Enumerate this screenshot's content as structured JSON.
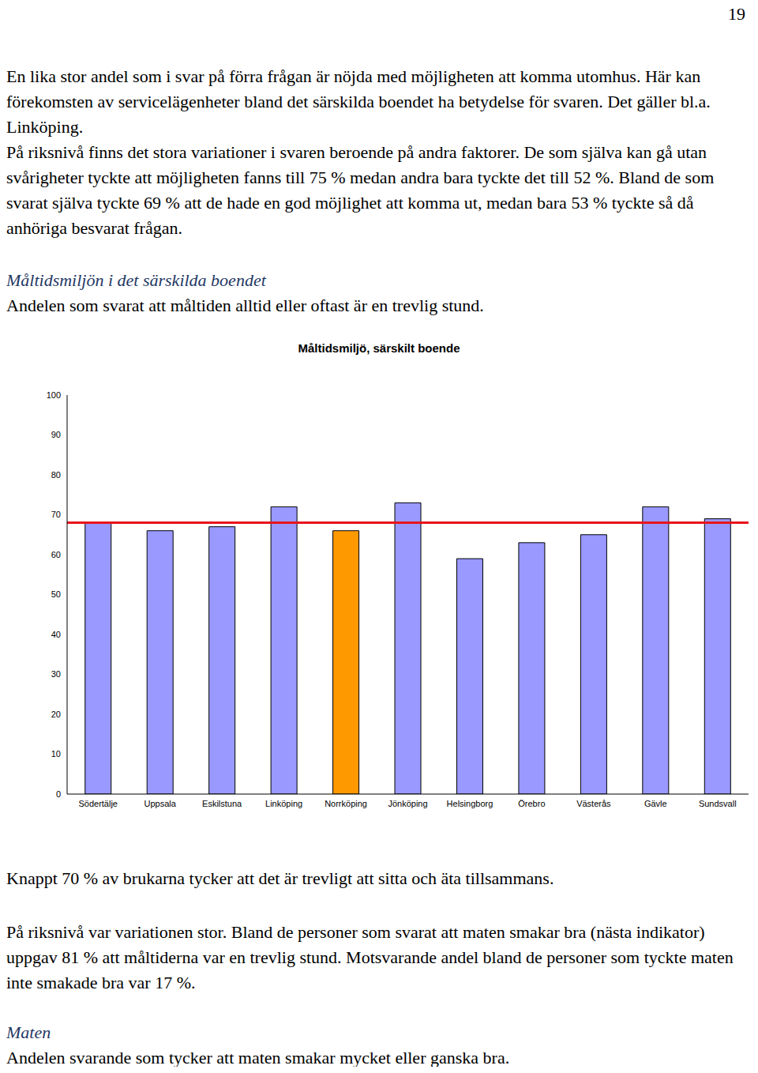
{
  "page_number": "19",
  "top_paragraphs": [
    "En lika stor andel som i svar på förra frågan är nöjda med möjligheten att komma utomhus. Här kan förekomsten av servicelägenheter bland det särskilda boendet ha betydelse för svaren. Det gäller bl.a. Linköping.",
    "På riksnivå finns det stora variationer i svaren beroende på andra faktorer. De som själva kan gå utan svårigheter tyckte att möjligheten fanns till 75 % medan andra bara tyckte det till 52 %. Bland de som svarat själva tyckte 69 % att de hade en god möjlighet att komma ut, medan bara 53 % tyckte så då anhöriga besvarat frågan."
  ],
  "heading_1": "Måltidsmiljön i det särskilda boendet",
  "intro_1": "Andelen som svarat att måltiden alltid eller oftast är en trevlig stund.",
  "chart_data": {
    "type": "bar",
    "title": "Måltidsmiljö, särskilt boende",
    "categories": [
      "Södertälje",
      "Uppsala",
      "Eskilstuna",
      "Linköping",
      "Norrköping",
      "Jönköping",
      "Helsingborg",
      "Örebro",
      "Västerås",
      "Gävle",
      "Sundsvall"
    ],
    "values": [
      68,
      66,
      67,
      72,
      66,
      73,
      59,
      63,
      65,
      72,
      69
    ],
    "colors": [
      "#9999ff",
      "#9999ff",
      "#9999ff",
      "#9999ff",
      "#ff9900",
      "#9999ff",
      "#9999ff",
      "#9999ff",
      "#9999ff",
      "#9999ff",
      "#9999ff"
    ],
    "ylim": [
      0,
      100
    ],
    "yticks": [
      0,
      10,
      20,
      30,
      40,
      50,
      60,
      70,
      80,
      90,
      100
    ],
    "grid": false,
    "reference_line": {
      "value": 68,
      "color": "#e8141b"
    }
  },
  "after_chart_paragraphs": [
    "Knappt 70 % av brukarna tycker att det är trevligt att sitta och äta tillsammans.",
    "På riksnivå var variationen stor. Bland de personer som svarat att maten smakar bra (nästa indikator) uppgav 81 % att måltiderna var en trevlig stund. Motsvarande andel bland de personer som tyckte maten inte smakade bra var 17 %."
  ],
  "heading_2": "Maten",
  "intro_2": "Andelen svarande som tycker att maten smakar mycket eller ganska bra."
}
